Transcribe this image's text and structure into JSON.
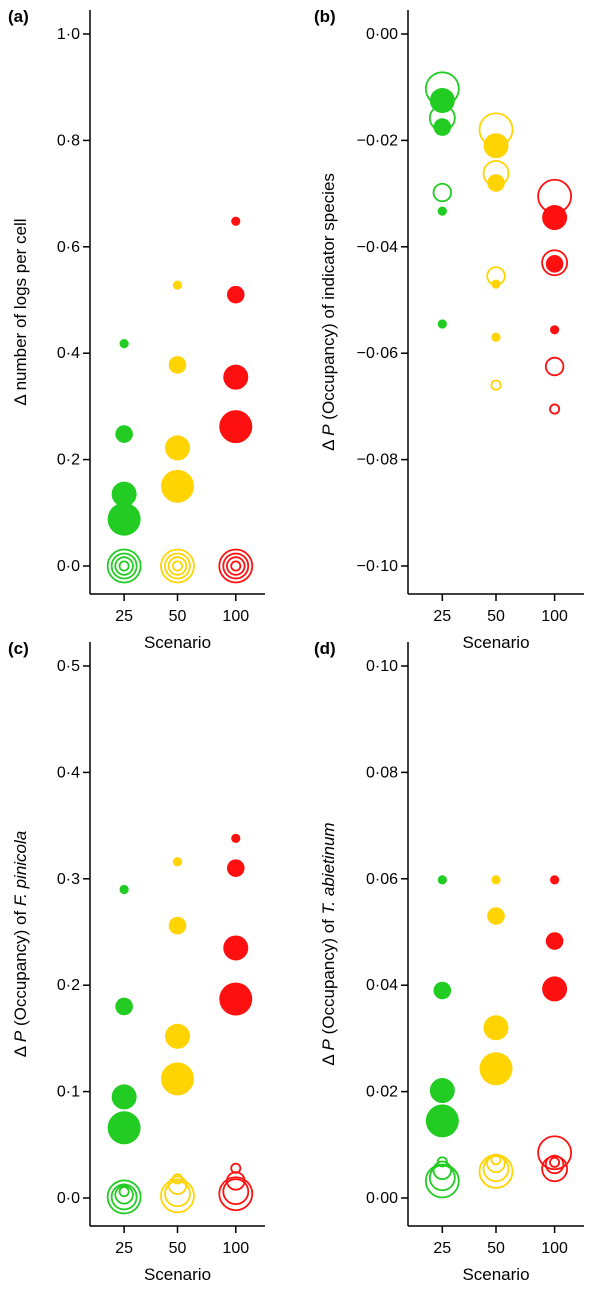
{
  "colors": {
    "25": "#22cc22",
    "50": "#ffd400",
    "100": "#ff1010"
  },
  "chart_data": [
    {
      "type": "scatter",
      "panel": "(a)",
      "xlabel": "Scenario",
      "ylabel": "Δ number of logs per cell",
      "ylabel_parts": [
        {
          "text": "Δ number of logs per cell",
          "italic": false
        }
      ],
      "categories": [
        "25",
        "50",
        "100"
      ],
      "ylim": [
        0,
        1.0
      ],
      "yticks": [
        0,
        0.2,
        0.4,
        0.6,
        0.8,
        1.0
      ],
      "ytick_labels": [
        "0·0",
        "0·2",
        "0·4",
        "0·6",
        "0·8",
        "1·0"
      ],
      "points": [
        {
          "x": "25",
          "y": 0.418,
          "size": 1,
          "filled": true
        },
        {
          "x": "25",
          "y": 0.248,
          "size": 2,
          "filled": true
        },
        {
          "x": "25",
          "y": 0.135,
          "size": 3,
          "filled": true
        },
        {
          "x": "25",
          "y": 0.088,
          "size": 4,
          "filled": true
        },
        {
          "x": "25",
          "y": 0.0,
          "size": 1,
          "filled": false
        },
        {
          "x": "25",
          "y": 0.0,
          "size": 2,
          "filled": false
        },
        {
          "x": "25",
          "y": 0.0,
          "size": 3,
          "filled": false
        },
        {
          "x": "25",
          "y": 0.0,
          "size": 4,
          "filled": false
        },
        {
          "x": "50",
          "y": 0.528,
          "size": 1,
          "filled": true
        },
        {
          "x": "50",
          "y": 0.378,
          "size": 2,
          "filled": true
        },
        {
          "x": "50",
          "y": 0.222,
          "size": 3,
          "filled": true
        },
        {
          "x": "50",
          "y": 0.15,
          "size": 4,
          "filled": true
        },
        {
          "x": "50",
          "y": 0.0,
          "size": 1,
          "filled": false
        },
        {
          "x": "50",
          "y": 0.0,
          "size": 2,
          "filled": false
        },
        {
          "x": "50",
          "y": 0.0,
          "size": 3,
          "filled": false
        },
        {
          "x": "50",
          "y": 0.0,
          "size": 4,
          "filled": false
        },
        {
          "x": "100",
          "y": 0.648,
          "size": 1,
          "filled": true
        },
        {
          "x": "100",
          "y": 0.51,
          "size": 2,
          "filled": true
        },
        {
          "x": "100",
          "y": 0.355,
          "size": 3,
          "filled": true
        },
        {
          "x": "100",
          "y": 0.262,
          "size": 4,
          "filled": true
        },
        {
          "x": "100",
          "y": 0.0,
          "size": 1,
          "filled": false
        },
        {
          "x": "100",
          "y": 0.0,
          "size": 2,
          "filled": false
        },
        {
          "x": "100",
          "y": 0.0,
          "size": 3,
          "filled": false
        },
        {
          "x": "100",
          "y": 0.0,
          "size": 4,
          "filled": false
        }
      ]
    },
    {
      "type": "scatter",
      "panel": "(b)",
      "xlabel": "Scenario",
      "ylabel": "Δ P (Occupancy) of indicator species",
      "ylabel_parts": [
        {
          "text": "Δ ",
          "italic": false
        },
        {
          "text": "P",
          "italic": true
        },
        {
          "text": " (Occupancy) of indicator species",
          "italic": false
        }
      ],
      "categories": [
        "25",
        "50",
        "100"
      ],
      "ylim": [
        -0.1,
        0.0
      ],
      "yticks": [
        -0.1,
        -0.08,
        -0.06,
        -0.04,
        -0.02,
        0.0
      ],
      "ytick_labels": [
        "−0·10",
        "−0·08",
        "−0·06",
        "−0·04",
        "−0·02",
        "0·00"
      ],
      "points": [
        {
          "x": "25",
          "y": -0.0103,
          "size": 4,
          "filled": false
        },
        {
          "x": "25",
          "y": -0.0125,
          "size": 3,
          "filled": true
        },
        {
          "x": "25",
          "y": -0.0158,
          "size": 3,
          "filled": false
        },
        {
          "x": "25",
          "y": -0.0175,
          "size": 2,
          "filled": true
        },
        {
          "x": "25",
          "y": -0.0298,
          "size": 2,
          "filled": false
        },
        {
          "x": "25",
          "y": -0.0333,
          "size": 1,
          "filled": true
        },
        {
          "x": "25",
          "y": -0.0545,
          "size": 1,
          "filled": true
        },
        {
          "x": "50",
          "y": -0.018,
          "size": 4,
          "filled": false
        },
        {
          "x": "50",
          "y": -0.021,
          "size": 3,
          "filled": true
        },
        {
          "x": "50",
          "y": -0.0262,
          "size": 3,
          "filled": false
        },
        {
          "x": "50",
          "y": -0.028,
          "size": 2,
          "filled": true
        },
        {
          "x": "50",
          "y": -0.0455,
          "size": 2,
          "filled": false
        },
        {
          "x": "50",
          "y": -0.047,
          "size": 1,
          "filled": true
        },
        {
          "x": "50",
          "y": -0.057,
          "size": 1,
          "filled": true
        },
        {
          "x": "50",
          "y": -0.066,
          "size": 1,
          "filled": false
        },
        {
          "x": "100",
          "y": -0.0305,
          "size": 4,
          "filled": false
        },
        {
          "x": "100",
          "y": -0.0345,
          "size": 3,
          "filled": true
        },
        {
          "x": "100",
          "y": -0.043,
          "size": 3,
          "filled": false
        },
        {
          "x": "100",
          "y": -0.0432,
          "size": 2,
          "filled": true
        },
        {
          "x": "100",
          "y": -0.0556,
          "size": 1,
          "filled": true
        },
        {
          "x": "100",
          "y": -0.0625,
          "size": 2,
          "filled": false
        },
        {
          "x": "100",
          "y": -0.0705,
          "size": 1,
          "filled": false
        }
      ]
    },
    {
      "type": "scatter",
      "panel": "(c)",
      "xlabel": "Scenario",
      "ylabel": "Δ P (Occupancy) of F. pinicola",
      "ylabel_parts": [
        {
          "text": "Δ ",
          "italic": false
        },
        {
          "text": "P",
          "italic": true
        },
        {
          "text": " (Occupancy) of ",
          "italic": false
        },
        {
          "text": "F. pinicola",
          "italic": true
        }
      ],
      "categories": [
        "25",
        "50",
        "100"
      ],
      "ylim": [
        0,
        0.5
      ],
      "yticks": [
        0,
        0.1,
        0.2,
        0.3,
        0.4,
        0.5
      ],
      "ytick_labels": [
        "0·0",
        "0·1",
        "0·2",
        "0·3",
        "0·4",
        "0·5"
      ],
      "points": [
        {
          "x": "25",
          "y": 0.29,
          "size": 1,
          "filled": true
        },
        {
          "x": "25",
          "y": 0.18,
          "size": 2,
          "filled": true
        },
        {
          "x": "25",
          "y": 0.095,
          "size": 3,
          "filled": true
        },
        {
          "x": "25",
          "y": 0.066,
          "size": 4,
          "filled": true
        },
        {
          "x": "25",
          "y": 0.006,
          "size": 1,
          "filled": false
        },
        {
          "x": "25",
          "y": 0.003,
          "size": 2,
          "filled": false
        },
        {
          "x": "25",
          "y": 0.001,
          "size": 3,
          "filled": false
        },
        {
          "x": "25",
          "y": 0.001,
          "size": 4,
          "filled": false
        },
        {
          "x": "50",
          "y": 0.316,
          "size": 1,
          "filled": true
        },
        {
          "x": "50",
          "y": 0.256,
          "size": 2,
          "filled": true
        },
        {
          "x": "50",
          "y": 0.152,
          "size": 3,
          "filled": true
        },
        {
          "x": "50",
          "y": 0.112,
          "size": 4,
          "filled": true
        },
        {
          "x": "50",
          "y": 0.018,
          "size": 1,
          "filled": false
        },
        {
          "x": "50",
          "y": 0.012,
          "size": 2,
          "filled": false
        },
        {
          "x": "50",
          "y": 0.004,
          "size": 3,
          "filled": false
        },
        {
          "x": "50",
          "y": 0.002,
          "size": 4,
          "filled": false
        },
        {
          "x": "100",
          "y": 0.338,
          "size": 1,
          "filled": true
        },
        {
          "x": "100",
          "y": 0.31,
          "size": 2,
          "filled": true
        },
        {
          "x": "100",
          "y": 0.235,
          "size": 3,
          "filled": true
        },
        {
          "x": "100",
          "y": 0.187,
          "size": 4,
          "filled": true
        },
        {
          "x": "100",
          "y": 0.028,
          "size": 1,
          "filled": false
        },
        {
          "x": "100",
          "y": 0.016,
          "size": 2,
          "filled": false
        },
        {
          "x": "100",
          "y": 0.006,
          "size": 3,
          "filled": false
        },
        {
          "x": "100",
          "y": 0.004,
          "size": 4,
          "filled": false
        }
      ]
    },
    {
      "type": "scatter",
      "panel": "(d)",
      "xlabel": "Scenario",
      "ylabel": "Δ P (Occupancy) of T. abietinum",
      "ylabel_parts": [
        {
          "text": "Δ ",
          "italic": false
        },
        {
          "text": "P",
          "italic": true
        },
        {
          "text": " (Occupancy) of ",
          "italic": false
        },
        {
          "text": "T. abietinum",
          "italic": true
        }
      ],
      "categories": [
        "25",
        "50",
        "100"
      ],
      "ylim": [
        0,
        0.1
      ],
      "yticks": [
        0,
        0.02,
        0.04,
        0.06,
        0.08,
        0.1
      ],
      "ytick_labels": [
        "0·00",
        "0·02",
        "0·04",
        "0·06",
        "0·08",
        "0·10"
      ],
      "points": [
        {
          "x": "25",
          "y": 0.0598,
          "size": 1,
          "filled": true
        },
        {
          "x": "25",
          "y": 0.039,
          "size": 2,
          "filled": true
        },
        {
          "x": "25",
          "y": 0.0202,
          "size": 3,
          "filled": true
        },
        {
          "x": "25",
          "y": 0.0145,
          "size": 4,
          "filled": true
        },
        {
          "x": "25",
          "y": 0.0068,
          "size": 1,
          "filled": false
        },
        {
          "x": "25",
          "y": 0.0052,
          "size": 2,
          "filled": false
        },
        {
          "x": "25",
          "y": 0.0038,
          "size": 3,
          "filled": false
        },
        {
          "x": "25",
          "y": 0.0032,
          "size": 4,
          "filled": false
        },
        {
          "x": "50",
          "y": 0.0598,
          "size": 1,
          "filled": true
        },
        {
          "x": "50",
          "y": 0.053,
          "size": 2,
          "filled": true
        },
        {
          "x": "50",
          "y": 0.032,
          "size": 3,
          "filled": true
        },
        {
          "x": "50",
          "y": 0.0243,
          "size": 4,
          "filled": true
        },
        {
          "x": "50",
          "y": 0.0072,
          "size": 1,
          "filled": false
        },
        {
          "x": "50",
          "y": 0.0065,
          "size": 2,
          "filled": false
        },
        {
          "x": "50",
          "y": 0.0055,
          "size": 3,
          "filled": false
        },
        {
          "x": "50",
          "y": 0.005,
          "size": 4,
          "filled": false
        },
        {
          "x": "100",
          "y": 0.0598,
          "size": 1,
          "filled": true
        },
        {
          "x": "100",
          "y": 0.0483,
          "size": 2,
          "filled": true
        },
        {
          "x": "100",
          "y": 0.0393,
          "size": 3,
          "filled": true
        },
        {
          "x": "100",
          "y": 0.0067,
          "size": 1,
          "filled": false
        },
        {
          "x": "100",
          "y": 0.0063,
          "size": 2,
          "filled": false
        },
        {
          "x": "100",
          "y": 0.0055,
          "size": 3,
          "filled": false
        },
        {
          "x": "100",
          "y": 0.0085,
          "size": 4,
          "filled": false
        }
      ]
    }
  ]
}
